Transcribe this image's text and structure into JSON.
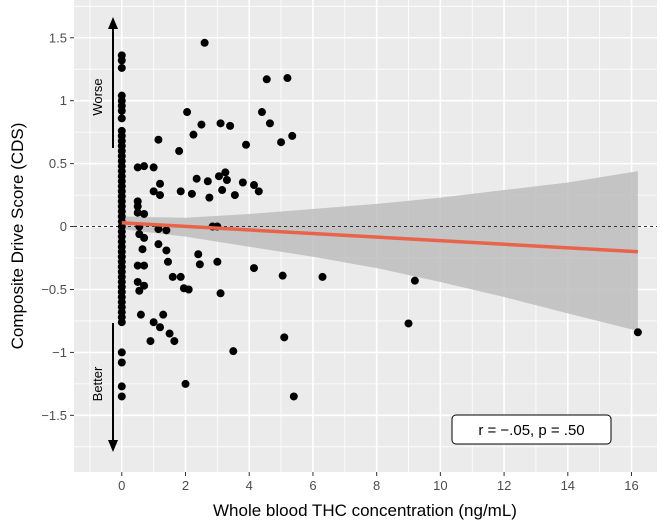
{
  "chart_data": {
    "type": "scatter",
    "xlabel": "Whole blood THC concentration (ng/mL)",
    "ylabel": "Composite Drive Score (CDS)",
    "xlim": [
      -1.5,
      16.8
    ],
    "ylim": [
      -1.95,
      1.8
    ],
    "x_ticks": [
      0,
      2,
      4,
      6,
      8,
      10,
      12,
      14,
      16
    ],
    "x_tick_labels": [
      "0",
      "2",
      "4",
      "6",
      "8",
      "10",
      "12",
      "14",
      "16"
    ],
    "y_ticks": [
      -1.5,
      -1,
      -0.5,
      0,
      0.5,
      1,
      1.5
    ],
    "y_tick_labels": [
      "−1.5",
      "−1",
      "−0.5",
      "0",
      "0.5",
      "1",
      "1.5"
    ],
    "grid": true,
    "reference_line_y": 0,
    "points": [
      [
        0,
        1.36
      ],
      [
        0,
        1.32
      ],
      [
        0,
        1.26
      ],
      [
        0,
        1.04
      ],
      [
        0,
        1.0
      ],
      [
        0,
        0.96
      ],
      [
        0,
        0.92
      ],
      [
        0,
        0.86
      ],
      [
        0,
        0.76
      ],
      [
        0,
        0.72
      ],
      [
        0,
        0.68
      ],
      [
        0,
        0.64
      ],
      [
        0,
        0.6
      ],
      [
        0,
        0.56
      ],
      [
        0,
        0.52
      ],
      [
        0,
        0.48
      ],
      [
        0,
        0.44
      ],
      [
        0,
        0.4
      ],
      [
        0,
        0.36
      ],
      [
        0,
        0.32
      ],
      [
        0,
        0.28
      ],
      [
        0,
        0.24
      ],
      [
        0,
        0.2
      ],
      [
        0,
        0.16
      ],
      [
        0,
        0.12
      ],
      [
        0,
        0.08
      ],
      [
        0,
        0.04
      ],
      [
        0,
        0.0
      ],
      [
        0,
        -0.04
      ],
      [
        0,
        -0.08
      ],
      [
        0,
        -0.12
      ],
      [
        0,
        -0.16
      ],
      [
        0,
        -0.2
      ],
      [
        0,
        -0.24
      ],
      [
        0,
        -0.28
      ],
      [
        0,
        -0.32
      ],
      [
        0,
        -0.36
      ],
      [
        0,
        -0.4
      ],
      [
        0,
        -0.44
      ],
      [
        0,
        -0.48
      ],
      [
        0,
        -0.52
      ],
      [
        0,
        -0.56
      ],
      [
        0,
        -0.6
      ],
      [
        0,
        -0.64
      ],
      [
        0,
        -0.68
      ],
      [
        0,
        -0.72
      ],
      [
        0,
        -0.76
      ],
      [
        0,
        -1.0
      ],
      [
        0,
        -1.08
      ],
      [
        0,
        -1.27
      ],
      [
        0,
        -1.35
      ],
      [
        0.5,
        0.47
      ],
      [
        0.5,
        0.2
      ],
      [
        0.5,
        0.16
      ],
      [
        0.5,
        0.11
      ],
      [
        0.55,
        0.0
      ],
      [
        0.55,
        -0.06
      ],
      [
        0.5,
        -0.31
      ],
      [
        0.5,
        -0.44
      ],
      [
        0.55,
        -0.51
      ],
      [
        0.7,
        0.48
      ],
      [
        0.7,
        0.1
      ],
      [
        0.7,
        -0.09
      ],
      [
        0.65,
        -0.18
      ],
      [
        0.7,
        -0.31
      ],
      [
        0.7,
        -0.47
      ],
      [
        0.6,
        -0.7
      ],
      [
        0.9,
        -0.91
      ],
      [
        1.0,
        0.47
      ],
      [
        1.0,
        0.28
      ],
      [
        1.15,
        0.69
      ],
      [
        1.2,
        0.34
      ],
      [
        1.2,
        0.25
      ],
      [
        1.15,
        -0.02
      ],
      [
        1.15,
        -0.14
      ],
      [
        1.0,
        -0.76
      ],
      [
        1.2,
        -0.8
      ],
      [
        1.3,
        -0.7
      ],
      [
        1.4,
        -0.03
      ],
      [
        1.4,
        -0.19
      ],
      [
        1.45,
        -0.28
      ],
      [
        1.5,
        -0.85
      ],
      [
        1.6,
        -0.4
      ],
      [
        1.65,
        -0.91
      ],
      [
        1.8,
        0.6
      ],
      [
        1.85,
        0.28
      ],
      [
        1.85,
        -0.4
      ],
      [
        1.95,
        -0.49
      ],
      [
        2.0,
        -1.25
      ],
      [
        2.05,
        0.91
      ],
      [
        2.1,
        -0.5
      ],
      [
        2.2,
        0.26
      ],
      [
        2.25,
        0.73
      ],
      [
        2.35,
        0.38
      ],
      [
        2.4,
        -0.22
      ],
      [
        2.45,
        -0.3
      ],
      [
        2.5,
        0.81
      ],
      [
        2.6,
        1.46
      ],
      [
        2.7,
        0.36
      ],
      [
        2.75,
        0.23
      ],
      [
        2.85,
        0.0
      ],
      [
        3.0,
        0.0
      ],
      [
        3.0,
        -0.28
      ],
      [
        3.1,
        0.82
      ],
      [
        3.05,
        0.4
      ],
      [
        3.1,
        -0.53
      ],
      [
        3.15,
        0.29
      ],
      [
        3.25,
        0.43
      ],
      [
        3.3,
        0.37
      ],
      [
        3.4,
        0.8
      ],
      [
        3.5,
        -0.99
      ],
      [
        3.55,
        0.25
      ],
      [
        3.8,
        0.35
      ],
      [
        3.9,
        0.65
      ],
      [
        4.15,
        0.33
      ],
      [
        4.15,
        -0.33
      ],
      [
        4.3,
        0.28
      ],
      [
        4.4,
        0.91
      ],
      [
        4.55,
        1.17
      ],
      [
        4.65,
        0.82
      ],
      [
        5.0,
        0.67
      ],
      [
        5.05,
        -0.39
      ],
      [
        5.1,
        -0.88
      ],
      [
        5.2,
        1.18
      ],
      [
        5.35,
        0.72
      ],
      [
        5.4,
        -1.35
      ],
      [
        6.3,
        -0.4
      ],
      [
        9.0,
        -0.77
      ],
      [
        9.2,
        -0.43
      ],
      [
        16.2,
        -0.84
      ]
    ],
    "regression": {
      "x_start": 0,
      "y_start": 0.03,
      "x_end": 16.2,
      "y_end": -0.2,
      "color": "#e8634a"
    },
    "confidence_band": {
      "x": [
        0,
        2,
        4,
        6,
        8,
        10,
        12,
        14,
        16.2
      ],
      "upper": [
        0.08,
        0.07,
        0.1,
        0.14,
        0.18,
        0.23,
        0.29,
        0.35,
        0.44
      ],
      "lower": [
        -0.02,
        -0.08,
        -0.16,
        -0.24,
        -0.33,
        -0.44,
        -0.56,
        -0.69,
        -0.83
      ],
      "color": "#bdbdbd"
    },
    "annotations": {
      "worse_label": "Worse",
      "better_label": "Better",
      "stat_label": "r = −.05, p = .50"
    },
    "colors": {
      "panel_bg": "#ebebeb",
      "grid": "#ffffff",
      "point": "#000000"
    }
  }
}
